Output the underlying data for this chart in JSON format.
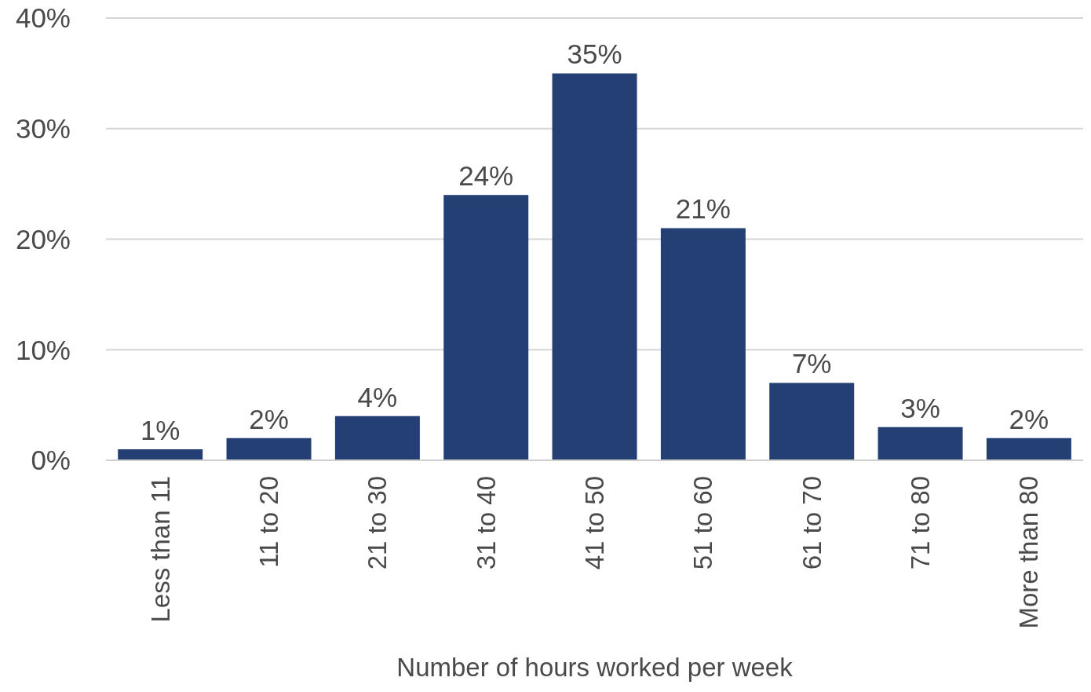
{
  "chart_data": {
    "type": "bar",
    "xlabel": "Number of hours worked per week",
    "categories": [
      "Less than 11",
      "11 to 20",
      "21 to 30",
      "31 to 40",
      "41 to 50",
      "51 to 60",
      "61 to 70",
      "71 to 80",
      "More than 80"
    ],
    "values": [
      1,
      2,
      4,
      24,
      35,
      21,
      7,
      3,
      2
    ],
    "value_labels": [
      "1%",
      "2%",
      "4%",
      "24%",
      "35%",
      "21%",
      "7%",
      "3%",
      "2%"
    ],
    "color": "#233f74",
    "ylim": [
      0,
      40
    ],
    "yticks": [
      {
        "value": 0,
        "label": "0%"
      },
      {
        "value": 10,
        "label": "10%"
      },
      {
        "value": 20,
        "label": "20%"
      },
      {
        "value": 30,
        "label": "30%"
      },
      {
        "value": 40,
        "label": "40%"
      }
    ],
    "grid": "y"
  }
}
